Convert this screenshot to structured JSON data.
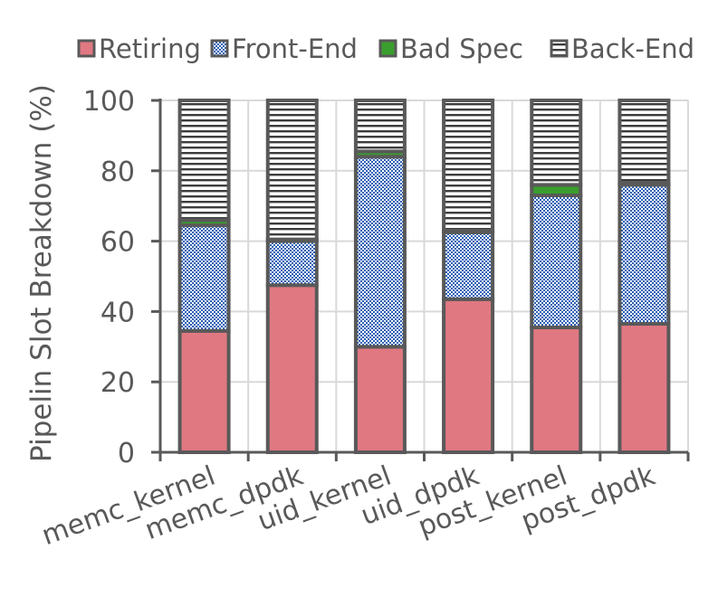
{
  "chart_data": {
    "type": "bar",
    "stacked": true,
    "title": "",
    "xlabel": "",
    "ylabel": "Pipelin Slot Breakdown (%)",
    "ylim": [
      0,
      100
    ],
    "yticks": [
      0,
      20,
      40,
      60,
      80,
      100
    ],
    "grid": true,
    "legend_position": "top",
    "categories": [
      "memc_kernel",
      "memc_dpdk",
      "uid_kernel",
      "uid_dpdk",
      "post_kernel",
      "post_dpdk"
    ],
    "series": [
      {
        "name": "Retiring",
        "pattern": "solid",
        "color": "#e07882",
        "values": [
          34.5,
          47.5,
          30,
          43.5,
          35.5,
          36.5
        ]
      },
      {
        "name": "Front-End",
        "pattern": "checker",
        "color": "#2e62b5",
        "values": [
          30,
          12.5,
          54,
          19,
          37.5,
          39.5
        ]
      },
      {
        "name": "Bad Spec",
        "pattern": "solid",
        "color": "#3a9e2e",
        "values": [
          1.5,
          0.5,
          1.5,
          0.5,
          3,
          0.5
        ]
      },
      {
        "name": "Back-End",
        "pattern": "hlines",
        "color": "#3c3c3c",
        "values": [
          34,
          39.5,
          14.5,
          37,
          24,
          23.5
        ]
      }
    ]
  }
}
